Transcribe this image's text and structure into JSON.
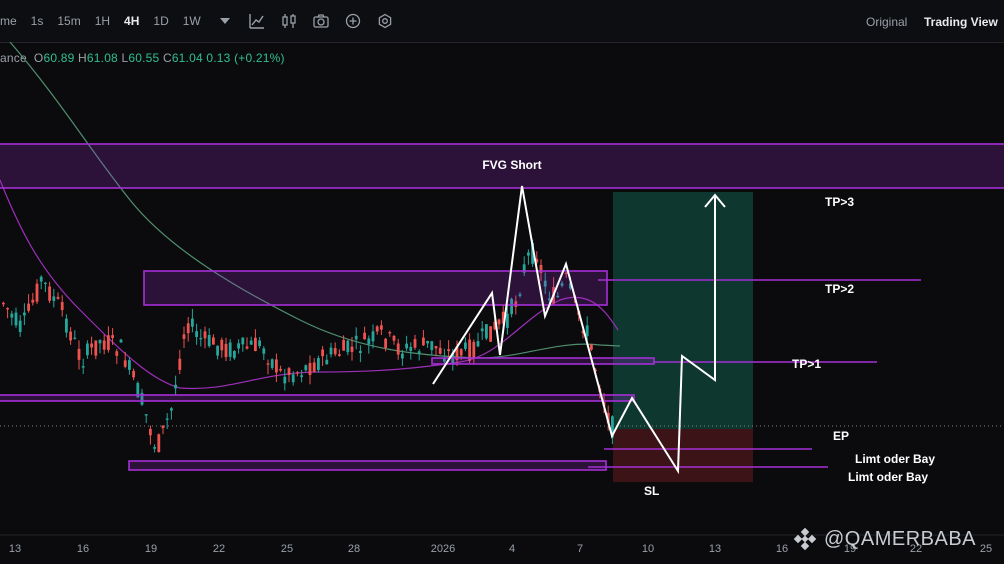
{
  "toolbar": {
    "partial_label": "me",
    "timeframes": [
      "1s",
      "15m",
      "1H",
      "4H",
      "1D",
      "1W"
    ],
    "active_timeframe": "4H",
    "original_label": "Original",
    "tradingview_label": "Trading View"
  },
  "ohlc": {
    "symbol_partial": "ance",
    "o_label": "O",
    "o": "60.89",
    "h_label": "H",
    "h": "61.08",
    "l_label": "L",
    "l": "60.55",
    "c_label": "C",
    "c": "61.04",
    "change": "0.13",
    "change_pct": "(+0.21%)"
  },
  "watermark": "@QAMERBABA",
  "colors": {
    "up": "#26a69a",
    "down": "#ef5350",
    "zone": "#a42fd6",
    "profit_zone": "#0f3a33",
    "loss_zone": "#3f1518",
    "ma_slow": "#4f8f6e",
    "ma_fast": "#9c2fb8"
  },
  "chart_data": {
    "type": "candlestick",
    "x_tick_labels": [
      "13",
      "16",
      "19",
      "22",
      "25",
      "28",
      "2026",
      "4",
      "7",
      "10",
      "13",
      "16",
      "19",
      "22",
      "25"
    ],
    "annotations": {
      "fvg": "FVG Short",
      "tp3": "TP>3",
      "tp2": "TP>2",
      "tp1": "TP>1",
      "ep": "EP",
      "limit1": "Limt oder Bay",
      "limit2": "Limt oder Bay",
      "sl": "SL"
    }
  }
}
